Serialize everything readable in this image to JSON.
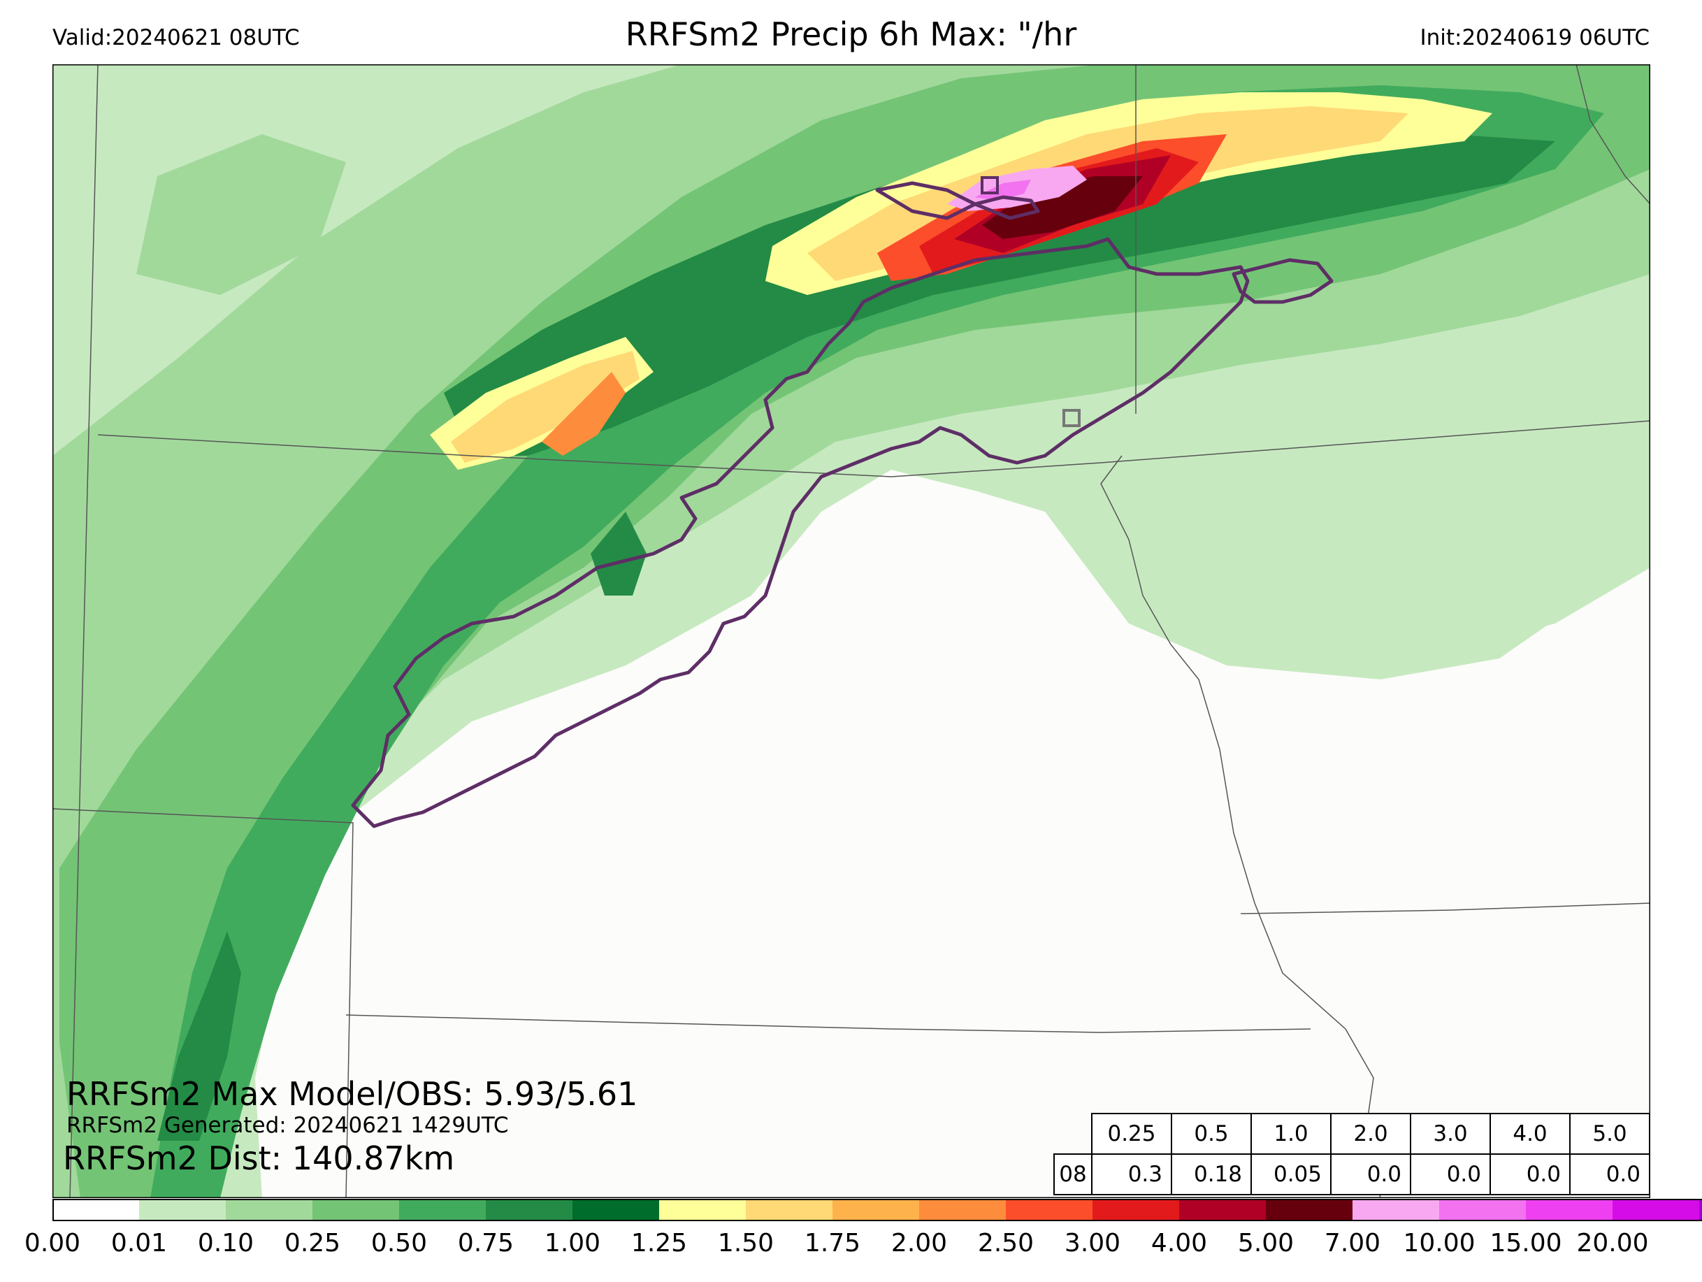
{
  "header": {
    "valid": "Valid:20240621 08UTC",
    "title": "RRFSm2 Precip 6h Max: \"/hr",
    "init": "Init:20240619 06UTC"
  },
  "overlay": {
    "max_line": "RRFSm2 Max Model/OBS: 5.93/5.61",
    "generated_line": "RRFSm2 Generated: 20240621 1429UTC",
    "dist_line": "RRFSm2 Dist: 140.87km"
  },
  "stats_table": {
    "thresholds": [
      "0.25",
      "0.5",
      "1.0",
      "2.0",
      "3.0",
      "4.0",
      "5.0"
    ],
    "row_label": "08",
    "values": [
      "0.3",
      "0.18",
      "0.05",
      "0.0",
      "0.0",
      "0.0",
      "0.0"
    ]
  },
  "colorbar": {
    "ticks": [
      "0.00",
      "0.01",
      "0.10",
      "0.25",
      "0.50",
      "0.75",
      "1.00",
      "1.25",
      "1.50",
      "1.75",
      "2.00",
      "2.50",
      "3.00",
      "4.00",
      "5.00",
      "7.00",
      "10.00",
      "15.00",
      "20.00"
    ],
    "colors": [
      "#ffffff",
      "#c7e9c0",
      "#a1d99b",
      "#74c476",
      "#41ab5d",
      "#238b45",
      "#006d2c",
      "#ffff99",
      "#fed976",
      "#feb24c",
      "#fd8d3c",
      "#fc4e2a",
      "#e31a1c",
      "#b10026",
      "#67000d",
      "#f7a8f0",
      "#f272f0",
      "#ee40f0",
      "#d60ce8",
      "#9c00d6"
    ],
    "extend_color": "#7a00b0"
  },
  "map_colors": {
    "background": "#fcfcfa",
    "outline": "#5e2e66",
    "border": "#555555"
  }
}
